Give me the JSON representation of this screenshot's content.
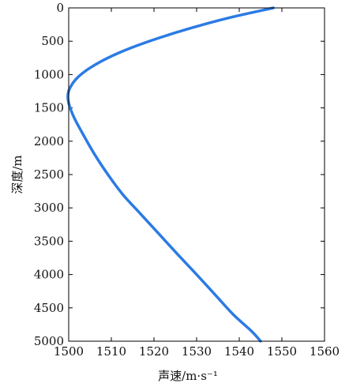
{
  "chart_data": {
    "type": "line",
    "xlabel": "声速/m·s⁻¹",
    "ylabel": "深度/m",
    "xlim": [
      1500,
      1560
    ],
    "ylim": [
      0,
      5000
    ],
    "y_inverted": true,
    "x_ticks": [
      "1500",
      "1510",
      "1520",
      "1530",
      "1540",
      "1550",
      "1560"
    ],
    "y_ticks": [
      "0",
      "500",
      "1000",
      "1500",
      "2000",
      "2500",
      "3000",
      "3500",
      "4000",
      "4500",
      "5000"
    ],
    "grid": false,
    "series": [
      {
        "color": "#2b7be4",
        "points": [
          [
            1548.0,
            0
          ],
          [
            1537.5,
            150
          ],
          [
            1528.8,
            300
          ],
          [
            1521.2,
            450
          ],
          [
            1514.6,
            600
          ],
          [
            1509.2,
            750
          ],
          [
            1505.0,
            900
          ],
          [
            1502.0,
            1050
          ],
          [
            1500.3,
            1200
          ],
          [
            1499.8,
            1320
          ],
          [
            1500.1,
            1450
          ],
          [
            1501.3,
            1650
          ],
          [
            1503.4,
            1900
          ],
          [
            1506.1,
            2200
          ],
          [
            1509.2,
            2500
          ],
          [
            1512.7,
            2800
          ],
          [
            1517.0,
            3100
          ],
          [
            1521.3,
            3400
          ],
          [
            1525.6,
            3700
          ],
          [
            1530.0,
            4000
          ],
          [
            1534.3,
            4300
          ],
          [
            1538.6,
            4600
          ],
          [
            1542.9,
            4850
          ],
          [
            1545.0,
            5000
          ]
        ]
      }
    ]
  }
}
